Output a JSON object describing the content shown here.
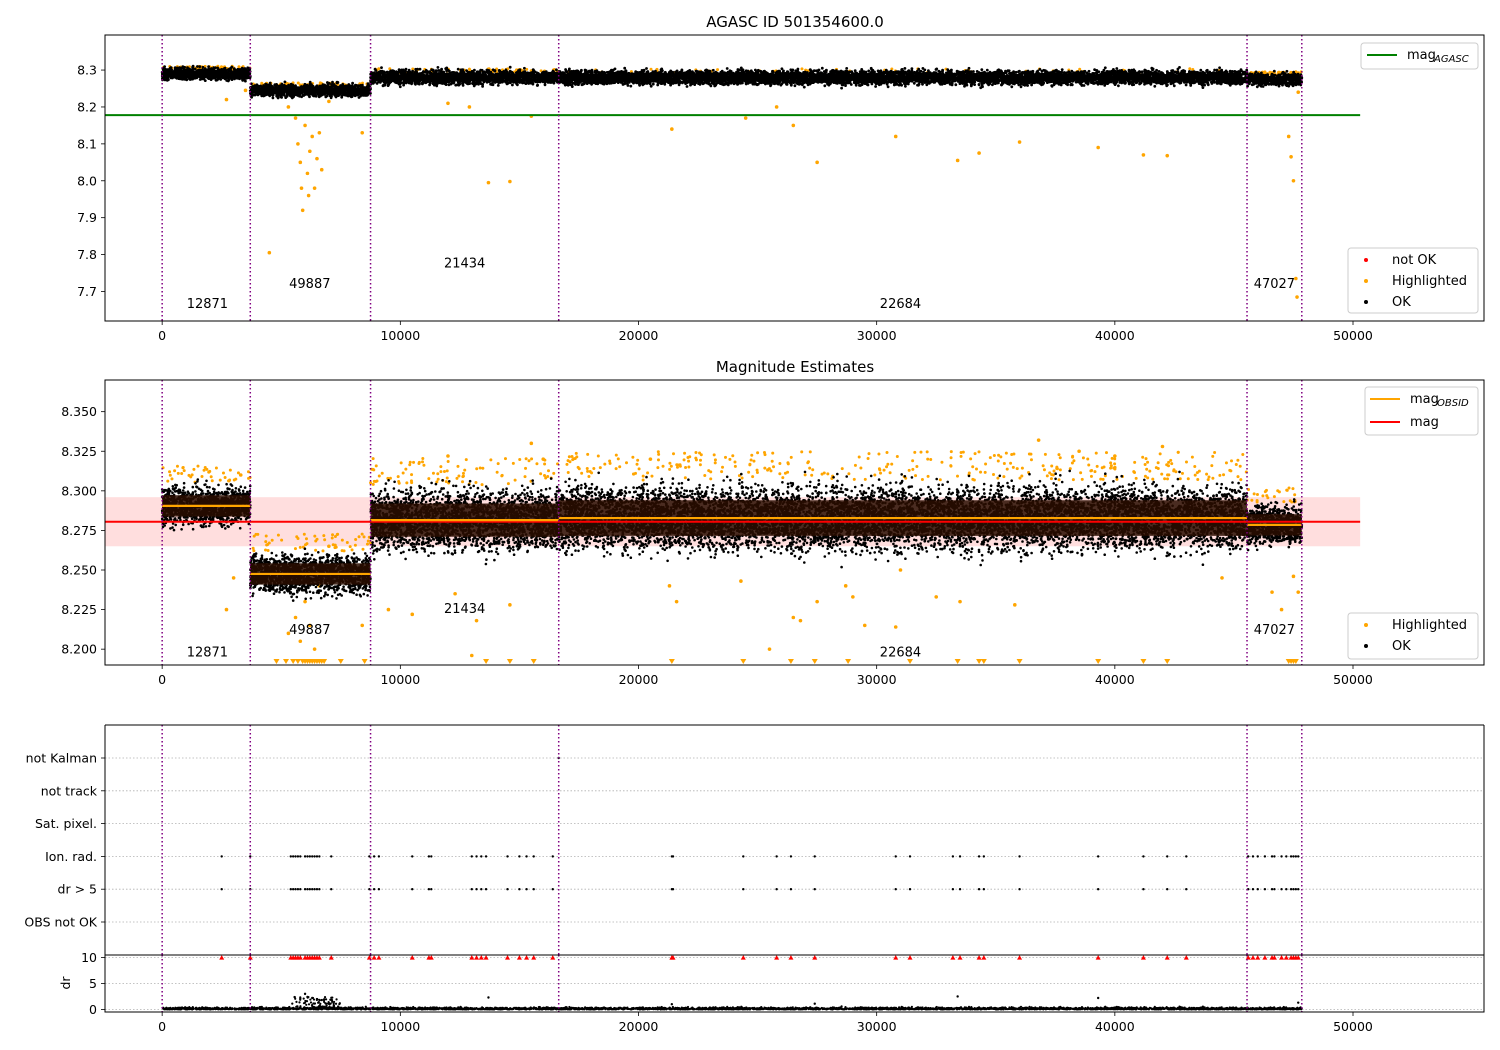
{
  "colors": {
    "ok": "#000000",
    "highlighted": "#ffa500",
    "not_ok": "#ff0000",
    "agasc_line": "#008000",
    "mag_line": "#ff0000",
    "obsid_line": "#ffa500",
    "boundary": "#800080",
    "band": "#ffdede"
  },
  "chart_data": [
    {
      "type": "scatter",
      "title": "AGASC ID 501354600.0",
      "xlim": [
        -2400,
        55500
      ],
      "ylim": [
        7.62,
        8.395
      ],
      "xticks": [
        0,
        10000,
        20000,
        30000,
        40000,
        50000
      ],
      "yticks": [
        7.7,
        7.8,
        7.9,
        8.0,
        8.1,
        8.2,
        8.3
      ],
      "ytick_labels": [
        "7.7",
        "7.8",
        "7.9",
        "8.0",
        "8.1",
        "8.2",
        "8.3"
      ],
      "boundaries": [
        0,
        3700,
        8750,
        16650,
        45550,
        47850
      ],
      "mag_agasc": 8.178,
      "mag_agasc_xrange": [
        -2400,
        50300
      ],
      "segments": [
        {
          "obsid": "12871",
          "x0": 0,
          "x1": 3700,
          "mean": 8.29,
          "spread": 0.012,
          "label_x": 1900,
          "label_y": 7.655
        },
        {
          "obsid": "49887",
          "x0": 3700,
          "x1": 8750,
          "mean": 8.245,
          "spread": 0.012,
          "label_x": 6200,
          "label_y": 7.71
        },
        {
          "obsid": "21434",
          "x0": 8750,
          "x1": 16650,
          "mean": 8.28,
          "spread": 0.014,
          "label_x": 12700,
          "label_y": 7.765
        },
        {
          "obsid": "22684",
          "x0": 16650,
          "x1": 45550,
          "mean": 8.28,
          "spread": 0.014,
          "label_x": 31000,
          "label_y": 7.655
        },
        {
          "obsid": "47027",
          "x0": 45550,
          "x1": 47850,
          "mean": 8.275,
          "spread": 0.012,
          "label_x": 46700,
          "label_y": 7.71
        }
      ],
      "highlighted_points": [
        [
          2700,
          8.22
        ],
        [
          3500,
          8.245
        ],
        [
          5300,
          8.2
        ],
        [
          5600,
          8.17
        ],
        [
          5700,
          8.1
        ],
        [
          5800,
          8.05
        ],
        [
          5850,
          7.98
        ],
        [
          5900,
          7.92
        ],
        [
          6000,
          8.15
        ],
        [
          6100,
          8.02
        ],
        [
          6150,
          7.96
        ],
        [
          6200,
          8.08
        ],
        [
          6300,
          8.12
        ],
        [
          6400,
          7.98
        ],
        [
          6500,
          8.06
        ],
        [
          6600,
          8.13
        ],
        [
          6700,
          8.03
        ],
        [
          4500,
          7.805
        ],
        [
          7000,
          8.215
        ],
        [
          8400,
          8.13
        ],
        [
          13700,
          7.995
        ],
        [
          14600,
          7.998
        ],
        [
          21400,
          8.14
        ],
        [
          27500,
          8.05
        ],
        [
          30800,
          8.12
        ],
        [
          33400,
          8.055
        ],
        [
          34300,
          8.075
        ],
        [
          36000,
          8.105
        ],
        [
          39300,
          8.09
        ],
        [
          41200,
          8.07
        ],
        [
          42200,
          8.068
        ],
        [
          24500,
          8.17
        ],
        [
          26500,
          8.15
        ],
        [
          47300,
          8.12
        ],
        [
          47400,
          8.065
        ],
        [
          47500,
          8.0
        ],
        [
          47600,
          7.735
        ],
        [
          47650,
          7.685
        ],
        [
          47700,
          8.24
        ],
        [
          15500,
          8.175
        ],
        [
          12900,
          8.2
        ],
        [
          12000,
          8.21
        ],
        [
          25800,
          8.2
        ]
      ],
      "legend_top": [
        {
          "label": "mag",
          "sub": "AGASC",
          "color": "#008000"
        }
      ],
      "legend_bottom": [
        {
          "label": "not OK",
          "color": "#ff0000"
        },
        {
          "label": "Highlighted",
          "color": "#ffa500"
        },
        {
          "label": "OK",
          "color": "#000000"
        }
      ]
    },
    {
      "type": "scatter",
      "title": "Magnitude Estimates",
      "xlim": [
        -2400,
        55500
      ],
      "ylim": [
        8.19,
        8.37
      ],
      "xticks": [
        0,
        10000,
        20000,
        30000,
        40000,
        50000
      ],
      "yticks": [
        8.2,
        8.225,
        8.25,
        8.275,
        8.3,
        8.325,
        8.35
      ],
      "ytick_labels": [
        "8.200",
        "8.225",
        "8.250",
        "8.275",
        "8.300",
        "8.325",
        "8.350"
      ],
      "boundaries": [
        0,
        3700,
        8750,
        16650,
        45550,
        47850
      ],
      "mag": 8.2805,
      "mag_band": [
        8.265,
        8.296
      ],
      "mag_xrange": [
        -2400,
        50300
      ],
      "segments": [
        {
          "obsid": "12871",
          "x0": 0,
          "x1": 3700,
          "mean": 8.2905,
          "spread": 0.009,
          "label_x": 1900,
          "label_y": 8.1955
        },
        {
          "obsid": "49887",
          "x0": 3700,
          "x1": 8750,
          "mean": 8.2475,
          "spread": 0.009,
          "label_x": 6200,
          "label_y": 8.2095
        },
        {
          "obsid": "21434",
          "x0": 8750,
          "x1": 16650,
          "mean": 8.2815,
          "spread": 0.014,
          "label_x": 12700,
          "label_y": 8.223
        },
        {
          "obsid": "22684",
          "x0": 16650,
          "x1": 45550,
          "mean": 8.2828,
          "spread": 0.015,
          "label_x": 31000,
          "label_y": 8.1955
        },
        {
          "obsid": "47027",
          "x0": 45550,
          "x1": 47850,
          "mean": 8.2785,
          "spread": 0.009,
          "label_x": 46700,
          "label_y": 8.2095
        }
      ],
      "highlighted_points": [
        [
          2700,
          8.225
        ],
        [
          3000,
          8.245
        ],
        [
          3300,
          8.31
        ],
        [
          5300,
          8.21
        ],
        [
          5600,
          8.22
        ],
        [
          5800,
          8.205
        ],
        [
          6000,
          8.23
        ],
        [
          6200,
          8.215
        ],
        [
          6400,
          8.2
        ],
        [
          6600,
          8.24
        ],
        [
          7000,
          8.265
        ],
        [
          8400,
          8.215
        ],
        [
          9500,
          8.225
        ],
        [
          10500,
          8.222
        ],
        [
          12000,
          8.322
        ],
        [
          12300,
          8.235
        ],
        [
          13000,
          8.196
        ],
        [
          13200,
          8.218
        ],
        [
          14600,
          8.228
        ],
        [
          15500,
          8.33
        ],
        [
          16000,
          8.32
        ],
        [
          20500,
          8.32
        ],
        [
          21300,
          8.24
        ],
        [
          21600,
          8.23
        ],
        [
          24300,
          8.243
        ],
        [
          26500,
          8.22
        ],
        [
          26800,
          8.218
        ],
        [
          27500,
          8.23
        ],
        [
          28700,
          8.24
        ],
        [
          29000,
          8.233
        ],
        [
          29500,
          8.215
        ],
        [
          30800,
          8.214
        ],
        [
          31000,
          8.25
        ],
        [
          32500,
          8.233
        ],
        [
          33500,
          8.23
        ],
        [
          35800,
          8.228
        ],
        [
          36800,
          8.332
        ],
        [
          38500,
          8.325
        ],
        [
          40000,
          8.322
        ],
        [
          42000,
          8.328
        ],
        [
          44500,
          8.245
        ],
        [
          46600,
          8.236
        ],
        [
          47000,
          8.225
        ],
        [
          47500,
          8.246
        ],
        [
          47700,
          8.236
        ],
        [
          25500,
          8.2
        ]
      ],
      "clipped_low_x": [
        4800,
        5200,
        5500,
        5700,
        5900,
        6000,
        6100,
        6200,
        6300,
        6400,
        6500,
        6600,
        6700,
        6800,
        7500,
        8500,
        13600,
        14600,
        15600,
        21400,
        24400,
        26400,
        27400,
        28800,
        31400,
        33400,
        34300,
        34500,
        36000,
        39300,
        41200,
        42200,
        47300,
        47400,
        47500,
        47600
      ],
      "legend_top": [
        {
          "label": "mag",
          "sub": "OBSID",
          "color": "#ffa500"
        },
        {
          "label": "mag",
          "sub": "",
          "color": "#ff0000"
        }
      ],
      "legend_bottom": [
        {
          "label": "Highlighted",
          "color": "#ffa500"
        },
        {
          "label": "OK",
          "color": "#000000"
        }
      ]
    },
    {
      "type": "scatter",
      "title": "",
      "xlim": [
        -2400,
        55500
      ],
      "xticks": [
        0,
        10000,
        20000,
        30000,
        40000,
        50000
      ],
      "boundaries": [
        0,
        3700,
        8750,
        16650,
        45550,
        47850
      ],
      "flag_rows": [
        "not Kalman",
        "not track",
        "Sat. pixel.",
        "Ion. rad.",
        "dr > 5",
        "OBS not OK"
      ],
      "flag_x": [
        2500,
        3700,
        5400,
        5500,
        5600,
        5700,
        5800,
        6000,
        6100,
        6200,
        6300,
        6400,
        6500,
        6600,
        7100,
        8700,
        8900,
        9100,
        10500,
        11200,
        11300,
        13000,
        13200,
        13400,
        13600,
        14500,
        15000,
        15300,
        15600,
        16400,
        21400,
        21450,
        24400,
        25800,
        26400,
        27400,
        30800,
        31400,
        33200,
        33500,
        34300,
        34500,
        36000,
        39300,
        41200,
        42200,
        43000,
        45600,
        45800,
        46000,
        46300,
        46600,
        46700,
        47000,
        47200,
        47400,
        47500,
        47600,
        47700
      ],
      "not_kalman_x": [
        16650
      ],
      "dr_ylim": [
        -0.5,
        10.5
      ],
      "dr_yticks": [
        0,
        5,
        10
      ],
      "dr_ylabel": "dr",
      "dr_spikes": [
        [
          5800,
          2.1
        ],
        [
          6000,
          3.0
        ],
        [
          6100,
          2.4
        ],
        [
          6300,
          2.2
        ],
        [
          6500,
          2.0
        ],
        [
          6700,
          1.8
        ],
        [
          7000,
          1.2
        ],
        [
          13700,
          2.3
        ],
        [
          33400,
          2.5
        ],
        [
          39300,
          2.2
        ],
        [
          27400,
          1.1
        ],
        [
          21400,
          1.0
        ],
        [
          47700,
          1.3
        ]
      ]
    }
  ]
}
